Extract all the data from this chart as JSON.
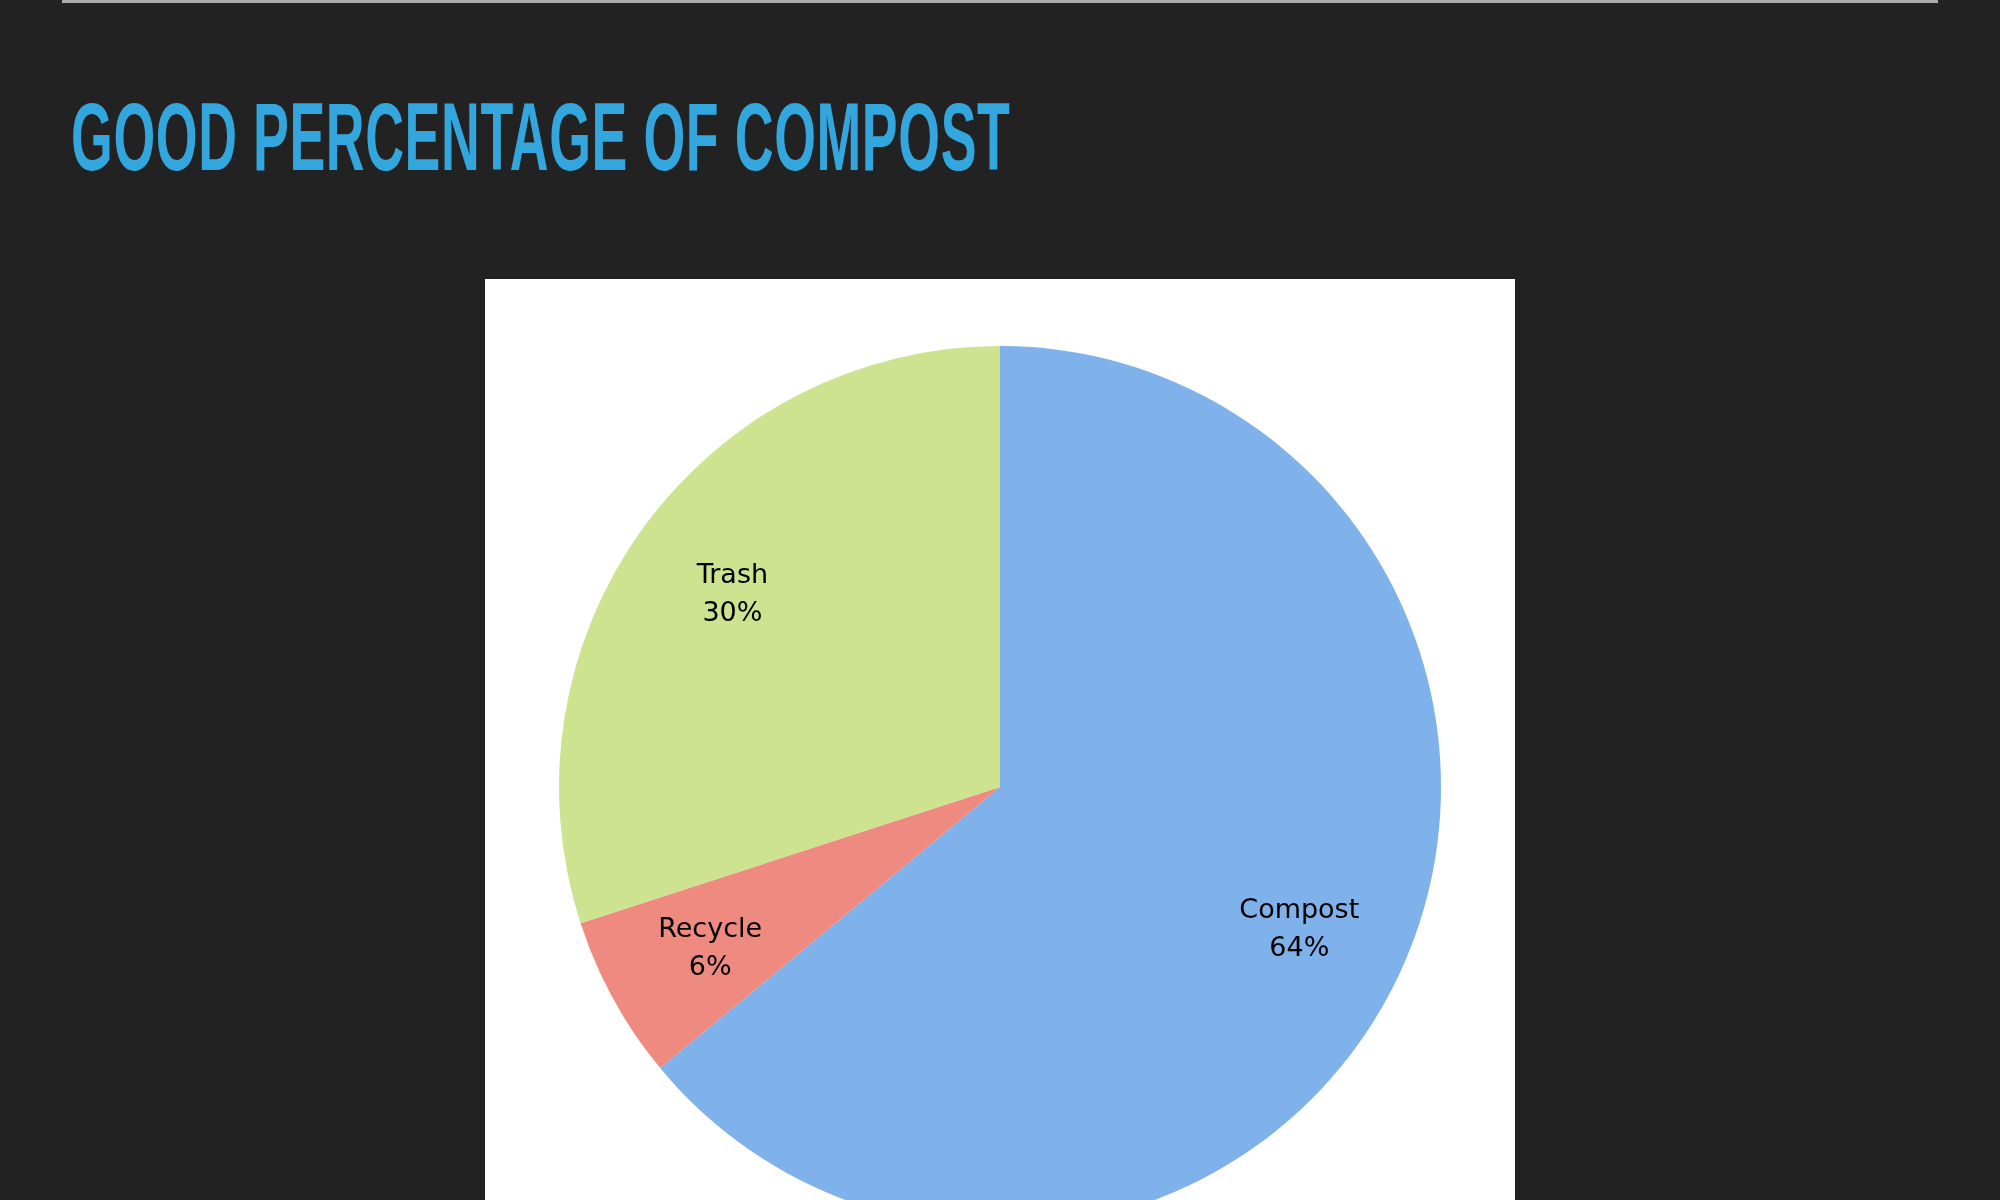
{
  "chart_data": {
    "type": "pie",
    "title": "GOOD PERCENTAGE OF COMPOST",
    "categories": [
      "Compost",
      "Recycle",
      "Trash"
    ],
    "values": [
      64,
      6,
      30
    ],
    "colors": [
      "#7fb2ea",
      "#ee8a80",
      "#cde38f"
    ],
    "value_labels": [
      "64%",
      "6%",
      "30%"
    ]
  }
}
